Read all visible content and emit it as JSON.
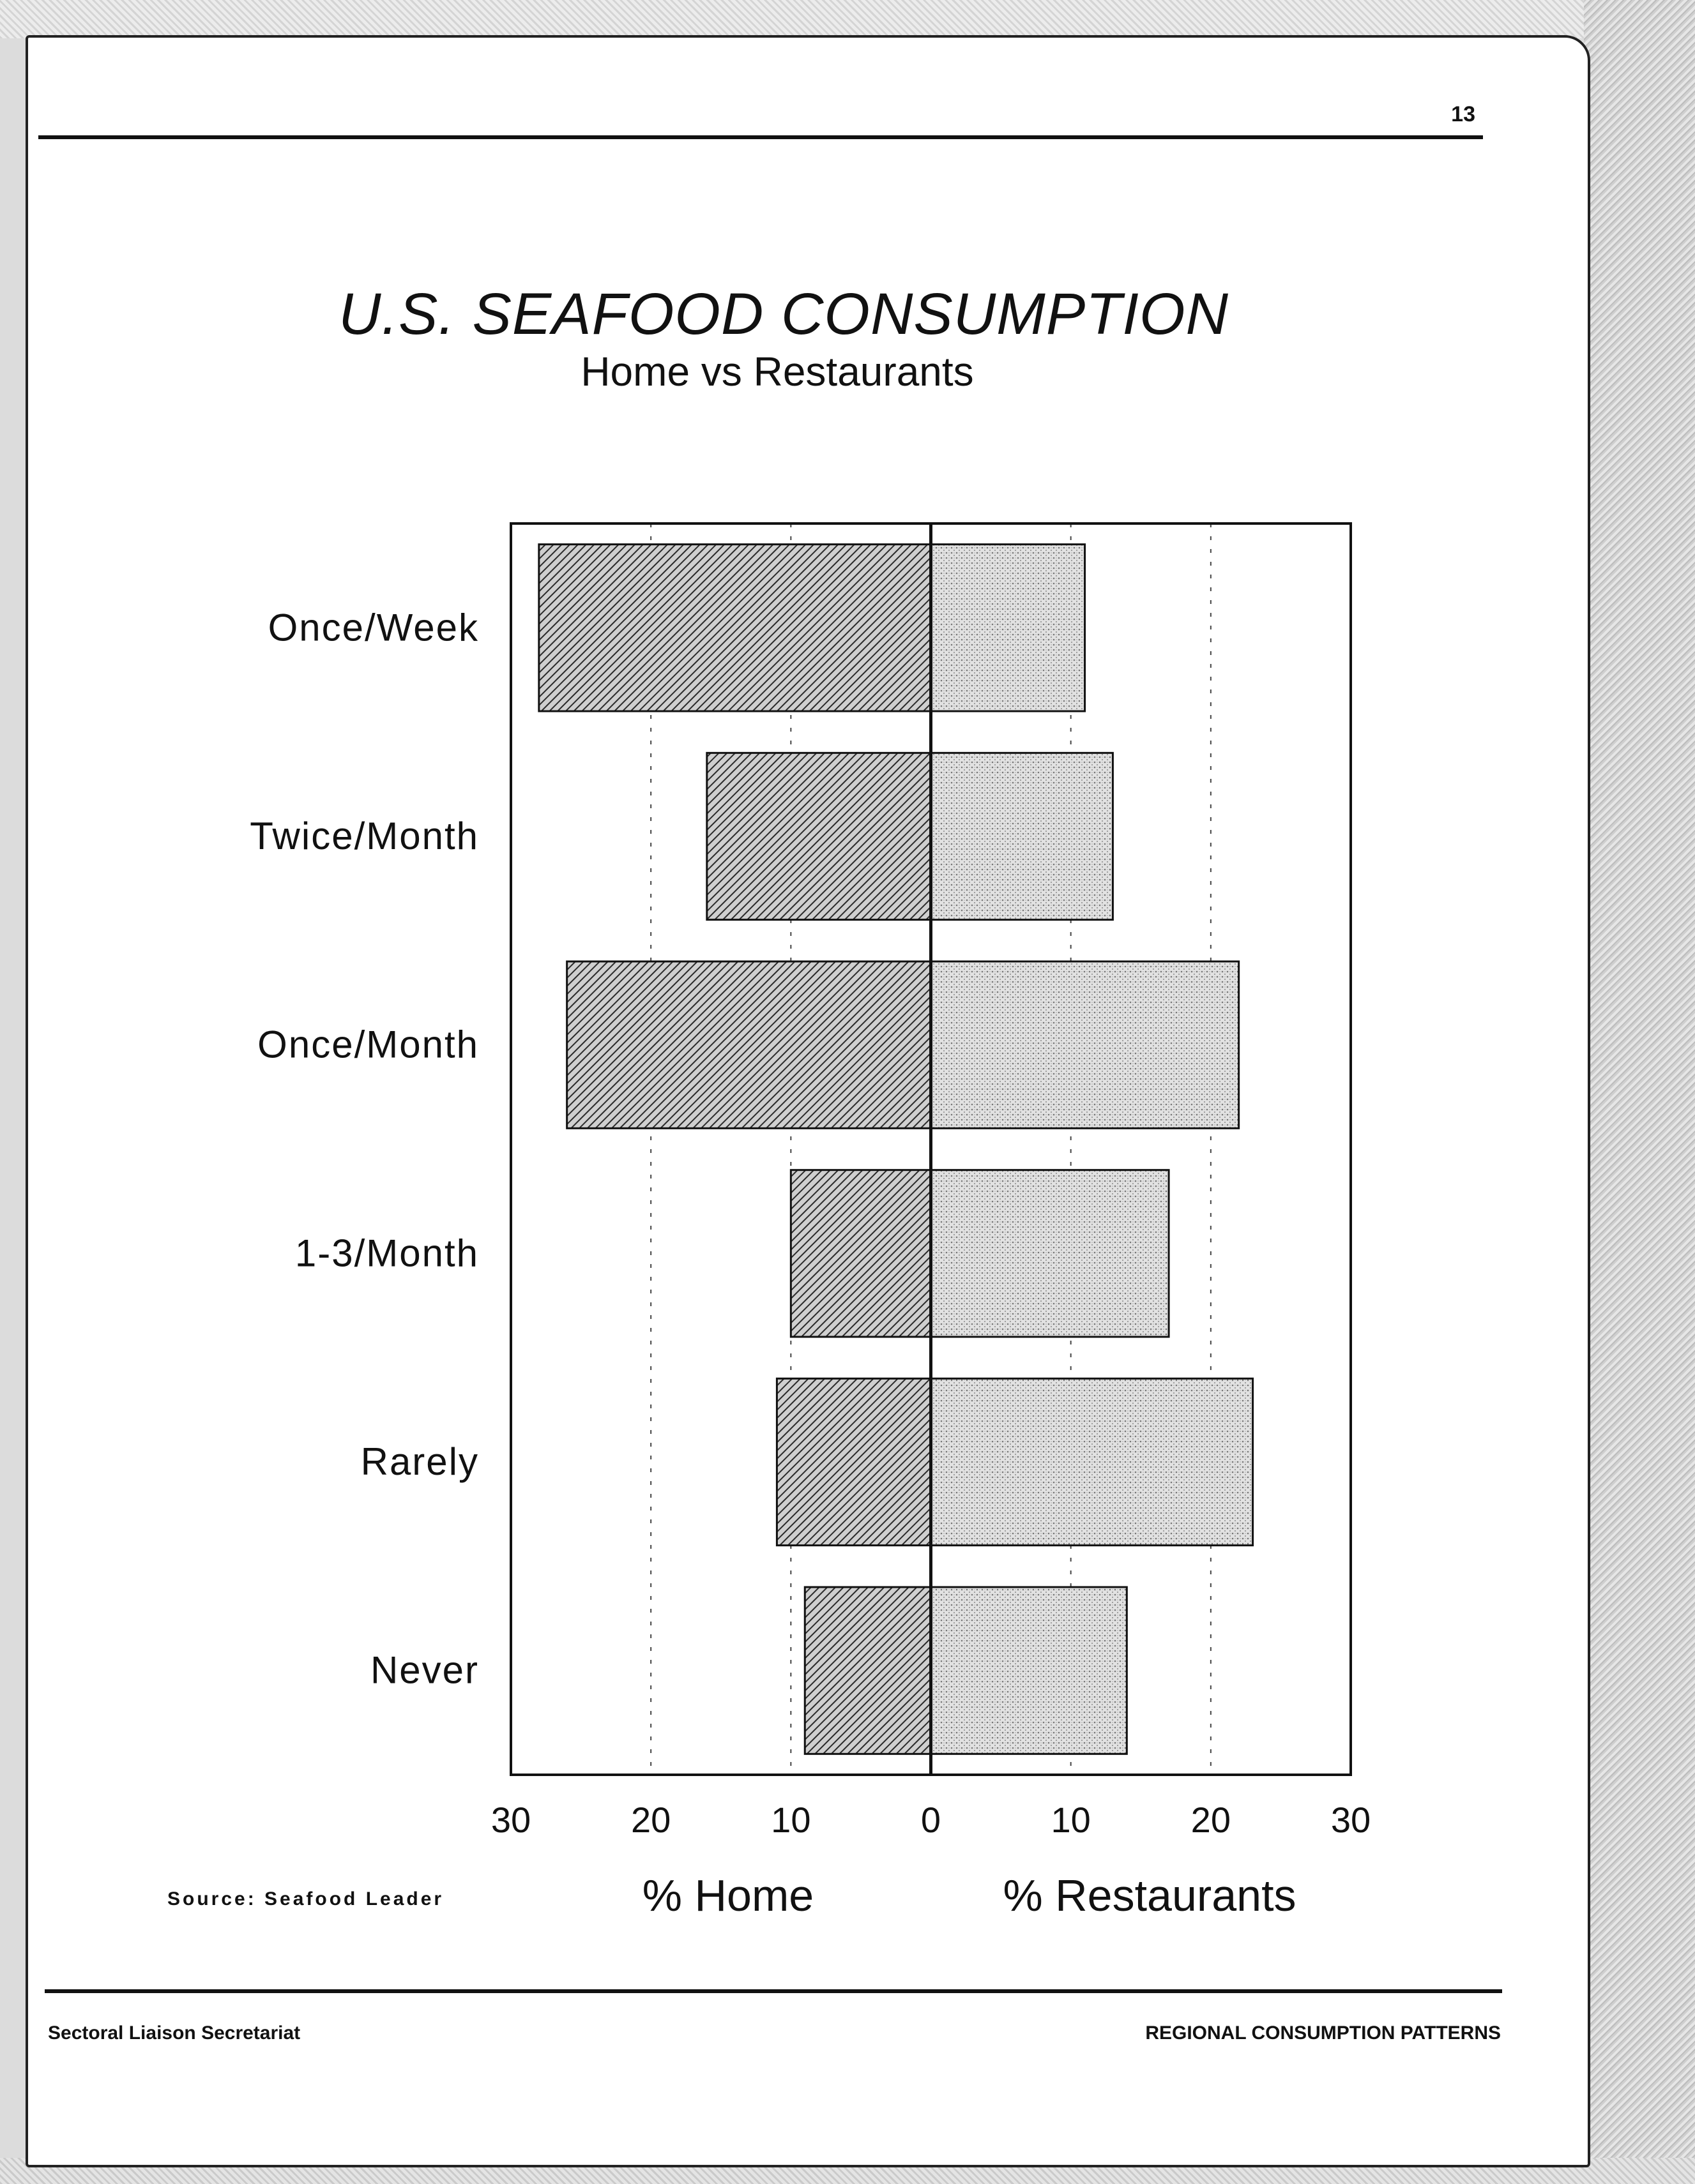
{
  "page": {
    "number": "13",
    "footer_left": "Sectoral Liaison Secretariat",
    "footer_right": "REGIONAL CONSUMPTION PATTERNS",
    "source": "Source: Seafood Leader"
  },
  "chart_data": {
    "type": "bar",
    "orientation": "horizontal-diverging",
    "title": "U.S. SEAFOOD CONSUMPTION",
    "subtitle": "Home vs Restaurants",
    "categories": [
      "Once/Week",
      "Twice/Month",
      "Once/Month",
      "1-3/Month",
      "Rarely",
      "Never"
    ],
    "series": [
      {
        "name": "% Home",
        "values": [
          28,
          16,
          26,
          10,
          11,
          9
        ],
        "color": "#555555",
        "pattern": "diagonal-hatch"
      },
      {
        "name": "% Restaurants",
        "values": [
          11,
          13,
          22,
          17,
          23,
          14
        ],
        "color": "#bdbdbd",
        "pattern": "stipple"
      }
    ],
    "xlim": [
      -30,
      30
    ],
    "x_ticks": [
      "30",
      "20",
      "10",
      "0",
      "10",
      "20",
      "30"
    ],
    "xlabel_left": "% Home",
    "xlabel_right": "% Restaurants",
    "grid": true
  }
}
